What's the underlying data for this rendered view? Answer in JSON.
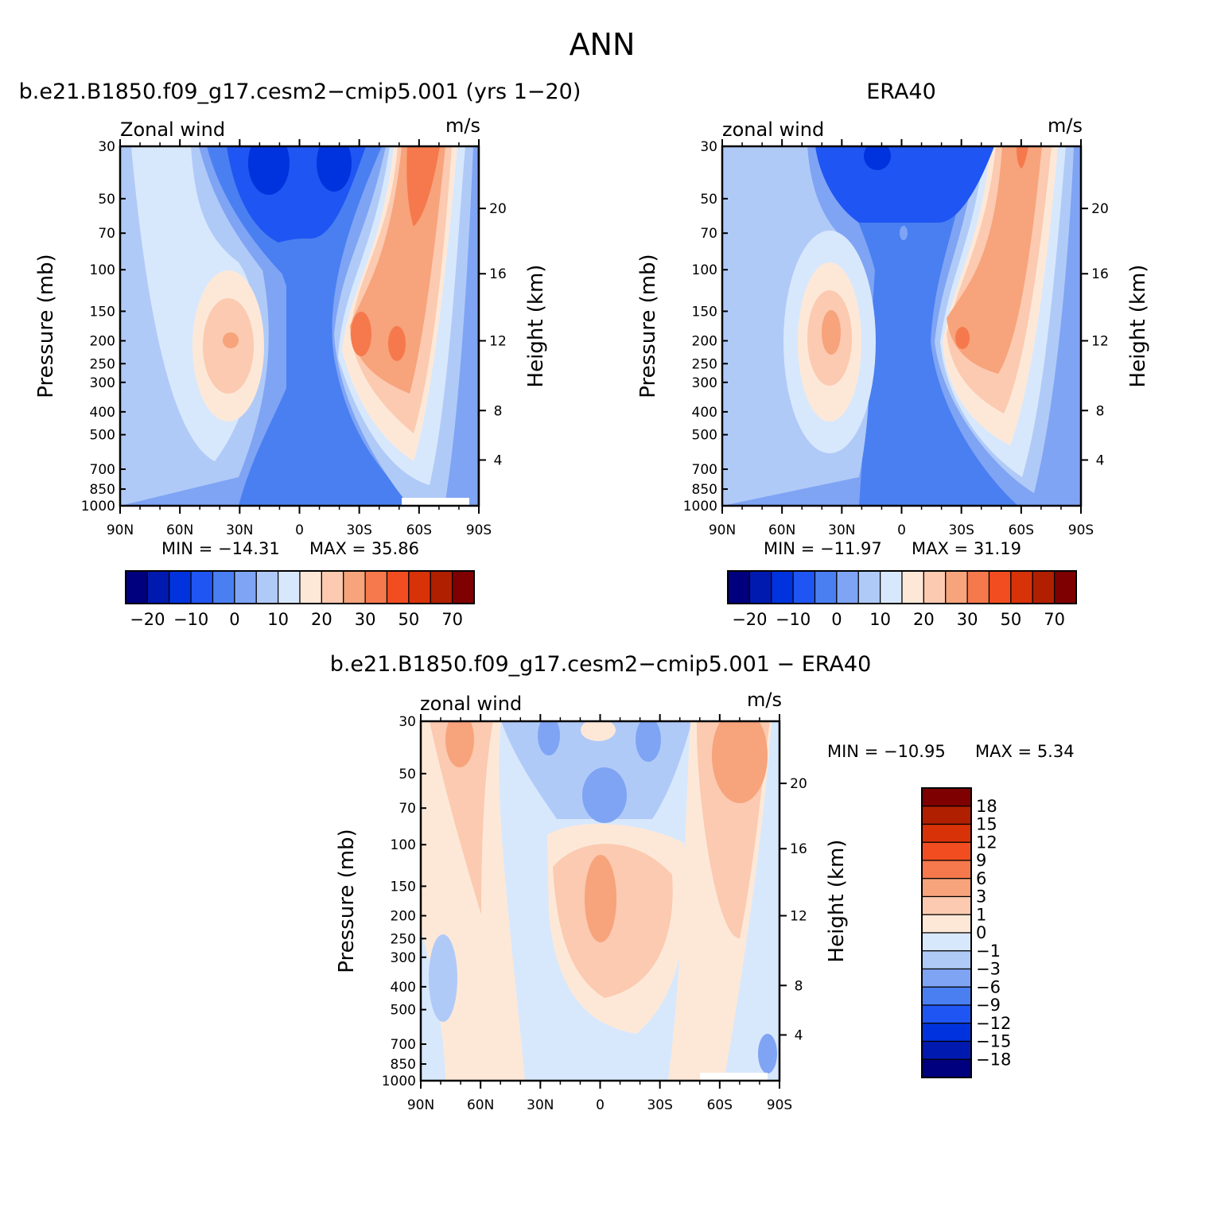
{
  "figure": {
    "title": "ANN"
  },
  "panels": [
    {
      "id": "model",
      "title": "b.e21.B1850.f09_g17.cesm2−cmip5.001 (yrs 1−20)",
      "left_label": "Zonal wind",
      "right_label": "m/s",
      "ylabel": "Pressure (mb)",
      "ylabel_right": "Height (km)",
      "min_label": "MIN = −14.31",
      "max_label": "MAX =   35.86",
      "pressure_ticks": [
        "30",
        "50",
        "70",
        "100",
        "150",
        "200",
        "250",
        "300",
        "400",
        "500",
        "700",
        "850",
        "1000"
      ],
      "height_ticks": [
        "20",
        "16",
        "12",
        "8",
        "4"
      ],
      "lat_ticks": [
        "90N",
        "60N",
        "30N",
        "0",
        "30S",
        "60S",
        "90S"
      ]
    },
    {
      "id": "obs",
      "title": "ERA40",
      "left_label": "zonal wind",
      "right_label": "m/s",
      "ylabel": "Pressure (mb)",
      "ylabel_right": "Height (km)",
      "min_label": "MIN = −11.97",
      "max_label": "MAX =   31.19",
      "pressure_ticks": [
        "30",
        "50",
        "70",
        "100",
        "150",
        "200",
        "250",
        "300",
        "400",
        "500",
        "700",
        "850",
        "1000"
      ],
      "height_ticks": [
        "20",
        "16",
        "12",
        "8",
        "4"
      ],
      "lat_ticks": [
        "90N",
        "60N",
        "30N",
        "0",
        "30S",
        "60S",
        "90S"
      ]
    },
    {
      "id": "diff",
      "title": "b.e21.B1850.f09_g17.cesm2−cmip5.001 − ERA40",
      "left_label": "zonal wind",
      "right_label": "m/s",
      "ylabel": "Pressure (mb)",
      "ylabel_right": "Height (km)",
      "min_label": "MIN = −10.95",
      "max_label": "MAX =    5.34",
      "pressure_ticks": [
        "30",
        "50",
        "70",
        "100",
        "150",
        "200",
        "250",
        "300",
        "400",
        "500",
        "700",
        "850",
        "1000"
      ],
      "height_ticks": [
        "20",
        "16",
        "12",
        "8",
        "4"
      ],
      "lat_ticks": [
        "90N",
        "60N",
        "30N",
        "0",
        "30S",
        "60S",
        "90S"
      ]
    }
  ],
  "colorbars": {
    "main": {
      "colors": [
        "#00007f",
        "#001ab0",
        "#0033dd",
        "#1f55f2",
        "#4a7ff2",
        "#7fa4f4",
        "#b0caf8",
        "#d8e8fc",
        "#fde8d8",
        "#fbcab0",
        "#f7a37c",
        "#f5794c",
        "#f24d20",
        "#d83208",
        "#b02000",
        "#7f0000"
      ],
      "labels": [
        "−20",
        "−10",
        "0",
        "10",
        "20",
        "30",
        "50",
        "70"
      ]
    },
    "diff": {
      "colors": [
        "#7f0000",
        "#b02000",
        "#d83208",
        "#f24d20",
        "#f5794c",
        "#f7a37c",
        "#fbcab0",
        "#fde8d8",
        "#d8e8fc",
        "#b0caf8",
        "#7fa4f4",
        "#4a7ff2",
        "#1f55f2",
        "#0033dd",
        "#001ab0",
        "#00007f"
      ],
      "labels": [
        "18",
        "15",
        "12",
        "9",
        "6",
        "3",
        "1",
        "0",
        "−1",
        "−3",
        "−6",
        "−9",
        "−12",
        "−15",
        "−18"
      ]
    }
  },
  "chart_data": [
    {
      "type": "heatmap",
      "title": "b.e21.B1850.f09_g17.cesm2−cmip5.001 (yrs 1−20)",
      "xlabel": "",
      "ylabel": "Pressure (mb)",
      "x_ticks": [
        "90N",
        "60N",
        "30N",
        "0",
        "30S",
        "60S",
        "90S"
      ],
      "y_scale": "log",
      "ylim": [
        1000,
        30
      ],
      "units": "m/s",
      "min": -14.31,
      "max": 35.86,
      "features": [
        {
          "lat": -60,
          "p_top": 30,
          "p_bot": 150,
          "value": 30
        },
        {
          "lat": -35,
          "p": 200,
          "value": 30
        },
        {
          "lat": -50,
          "p": 200,
          "value": 30
        },
        {
          "lat": 35,
          "p": 200,
          "value": 25
        },
        {
          "lat": 10,
          "p": 40,
          "value": -10
        },
        {
          "lat": -20,
          "p": 40,
          "value": -10
        }
      ]
    },
    {
      "type": "heatmap",
      "title": "ERA40",
      "xlabel": "",
      "ylabel": "Pressure (mb)",
      "x_ticks": [
        "90N",
        "60N",
        "30N",
        "0",
        "30S",
        "60S",
        "90S"
      ],
      "y_scale": "log",
      "ylim": [
        1000,
        30
      ],
      "units": "m/s",
      "min": -11.97,
      "max": 31.19,
      "features": [
        {
          "lat": -60,
          "p": 30,
          "value": 30
        },
        {
          "lat": -35,
          "p": 200,
          "value": 30
        },
        {
          "lat": 35,
          "p": 170,
          "value": 25
        },
        {
          "lat": 8,
          "p": 35,
          "value": -10
        }
      ]
    },
    {
      "type": "heatmap",
      "title": "b.e21.B1850.f09_g17.cesm2−cmip5.001 − ERA40",
      "xlabel": "",
      "ylabel": "Pressure (mb)",
      "x_ticks": [
        "90N",
        "60N",
        "30N",
        "0",
        "30S",
        "60S",
        "90S"
      ],
      "y_scale": "log",
      "ylim": [
        1000,
        30
      ],
      "units": "m/s",
      "min": -10.95,
      "max": 5.34,
      "features": [
        {
          "lat": 0,
          "p": 150,
          "value": 6
        },
        {
          "lat": -60,
          "p": 45,
          "value": 6
        },
        {
          "lat": 75,
          "p": 35,
          "value": 3
        },
        {
          "lat": 0,
          "p": 55,
          "value": -6
        },
        {
          "lat": 18,
          "p": 30,
          "value": -6
        }
      ]
    }
  ]
}
